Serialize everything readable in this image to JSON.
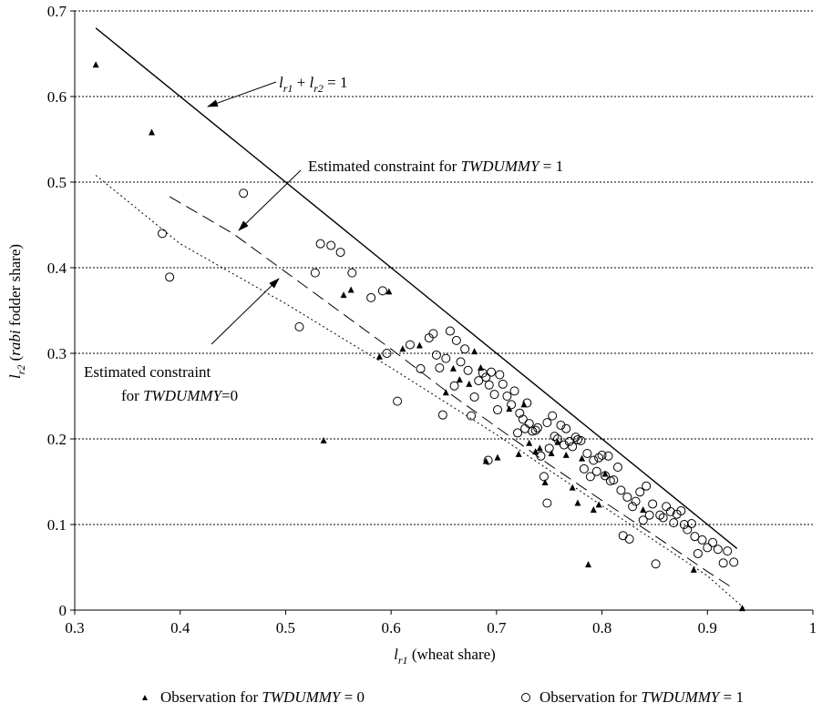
{
  "chart_data": {
    "type": "scatter",
    "xlim": [
      0.3,
      1.0
    ],
    "ylim": [
      0.0,
      0.7
    ],
    "x_ticks": [
      0.3,
      0.4,
      0.5,
      0.6,
      0.7,
      0.8,
      0.9,
      1.0
    ],
    "x_tick_labels": [
      "0.3",
      "0.4",
      "0.5",
      "0.6",
      "0.7",
      "0.8",
      "0.9",
      "1"
    ],
    "y_ticks": [
      0,
      0.1,
      0.2,
      0.3,
      0.4,
      0.5,
      0.6,
      0.7
    ],
    "y_tick_labels": [
      "0",
      "0.1",
      "0.2",
      "0.3",
      "0.4",
      "0.5",
      "0.6",
      "0.7"
    ],
    "grid": "horizontal dotted",
    "xlabel": {
      "l": "l",
      "sub": "r1",
      "rest": " (wheat share)"
    },
    "ylabel": {
      "l": "l",
      "sub": "r2",
      "open": " (",
      "ital": "rabi",
      "rest": " fodder share)"
    },
    "lines": [
      {
        "name": "l_r1 + l_r2 = 1",
        "style": "solid",
        "x": [
          0.32,
          0.928
        ],
        "y": [
          0.68,
          0.072
        ]
      },
      {
        "name": "Estimated constraint for TWDUMMY = 1",
        "style": "dashed",
        "x": [
          0.39,
          0.45,
          0.5,
          0.55,
          0.6,
          0.65,
          0.7,
          0.75,
          0.8,
          0.85,
          0.9,
          0.925
        ],
        "y": [
          0.483,
          0.44,
          0.395,
          0.35,
          0.305,
          0.258,
          0.214,
          0.17,
          0.128,
          0.087,
          0.045,
          0.025
        ]
      },
      {
        "name": "Estimated constraint for TWDUMMY = 0",
        "style": "dotted",
        "x": [
          0.32,
          0.4,
          0.5,
          0.6,
          0.7,
          0.8,
          0.9,
          0.935
        ],
        "y": [
          0.508,
          0.428,
          0.358,
          0.283,
          0.205,
          0.122,
          0.04,
          0.002
        ]
      }
    ],
    "series": [
      {
        "name": "Observation for TWDUMMY = 0",
        "marker": "triangle",
        "points": [
          [
            0.32,
            0.637
          ],
          [
            0.373,
            0.558
          ],
          [
            0.536,
            0.198
          ],
          [
            0.555,
            0.368
          ],
          [
            0.562,
            0.374
          ],
          [
            0.589,
            0.296
          ],
          [
            0.598,
            0.372
          ],
          [
            0.611,
            0.305
          ],
          [
            0.627,
            0.309
          ],
          [
            0.652,
            0.254
          ],
          [
            0.659,
            0.282
          ],
          [
            0.665,
            0.269
          ],
          [
            0.674,
            0.264
          ],
          [
            0.679,
            0.302
          ],
          [
            0.685,
            0.283
          ],
          [
            0.69,
            0.174
          ],
          [
            0.701,
            0.178
          ],
          [
            0.712,
            0.235
          ],
          [
            0.721,
            0.182
          ],
          [
            0.726,
            0.24
          ],
          [
            0.731,
            0.195
          ],
          [
            0.737,
            0.185
          ],
          [
            0.741,
            0.189
          ],
          [
            0.746,
            0.149
          ],
          [
            0.752,
            0.183
          ],
          [
            0.758,
            0.196
          ],
          [
            0.766,
            0.181
          ],
          [
            0.772,
            0.143
          ],
          [
            0.777,
            0.125
          ],
          [
            0.781,
            0.177
          ],
          [
            0.787,
            0.053
          ],
          [
            0.792,
            0.117
          ],
          [
            0.797,
            0.123
          ],
          [
            0.803,
            0.159
          ],
          [
            0.839,
            0.117
          ],
          [
            0.887,
            0.047
          ],
          [
            0.933,
            0.002
          ]
        ]
      },
      {
        "name": "Observation for TWDUMMY = 1",
        "marker": "circle",
        "points": [
          [
            0.383,
            0.44
          ],
          [
            0.39,
            0.389
          ],
          [
            0.46,
            0.487
          ],
          [
            0.513,
            0.331
          ],
          [
            0.528,
            0.394
          ],
          [
            0.533,
            0.428
          ],
          [
            0.543,
            0.426
          ],
          [
            0.552,
            0.418
          ],
          [
            0.563,
            0.394
          ],
          [
            0.581,
            0.365
          ],
          [
            0.592,
            0.373
          ],
          [
            0.596,
            0.3
          ],
          [
            0.606,
            0.244
          ],
          [
            0.618,
            0.31
          ],
          [
            0.628,
            0.282
          ],
          [
            0.636,
            0.318
          ],
          [
            0.64,
            0.323
          ],
          [
            0.643,
            0.298
          ],
          [
            0.646,
            0.283
          ],
          [
            0.649,
            0.228
          ],
          [
            0.652,
            0.294
          ],
          [
            0.656,
            0.326
          ],
          [
            0.66,
            0.262
          ],
          [
            0.662,
            0.315
          ],
          [
            0.666,
            0.29
          ],
          [
            0.67,
            0.305
          ],
          [
            0.673,
            0.28
          ],
          [
            0.676,
            0.227
          ],
          [
            0.679,
            0.249
          ],
          [
            0.683,
            0.268
          ],
          [
            0.687,
            0.277
          ],
          [
            0.69,
            0.272
          ],
          [
            0.693,
            0.263
          ],
          [
            0.695,
            0.278
          ],
          [
            0.698,
            0.252
          ],
          [
            0.701,
            0.234
          ],
          [
            0.703,
            0.275
          ],
          [
            0.706,
            0.264
          ],
          [
            0.71,
            0.25
          ],
          [
            0.714,
            0.24
          ],
          [
            0.717,
            0.256
          ],
          [
            0.72,
            0.207
          ],
          [
            0.722,
            0.23
          ],
          [
            0.725,
            0.223
          ],
          [
            0.727,
            0.212
          ],
          [
            0.729,
            0.242
          ],
          [
            0.731,
            0.218
          ],
          [
            0.734,
            0.209
          ],
          [
            0.737,
            0.21
          ],
          [
            0.739,
            0.213
          ],
          [
            0.742,
            0.18
          ],
          [
            0.745,
            0.156
          ],
          [
            0.748,
            0.219
          ],
          [
            0.75,
            0.189
          ],
          [
            0.753,
            0.227
          ],
          [
            0.755,
            0.203
          ],
          [
            0.758,
            0.2
          ],
          [
            0.761,
            0.216
          ],
          [
            0.764,
            0.193
          ],
          [
            0.766,
            0.212
          ],
          [
            0.769,
            0.197
          ],
          [
            0.772,
            0.191
          ],
          [
            0.775,
            0.202
          ],
          [
            0.777,
            0.199
          ],
          [
            0.78,
            0.198
          ],
          [
            0.783,
            0.165
          ],
          [
            0.786,
            0.183
          ],
          [
            0.789,
            0.156
          ],
          [
            0.792,
            0.175
          ],
          [
            0.795,
            0.162
          ],
          [
            0.797,
            0.178
          ],
          [
            0.8,
            0.181
          ],
          [
            0.803,
            0.157
          ],
          [
            0.806,
            0.18
          ],
          [
            0.808,
            0.151
          ],
          [
            0.811,
            0.152
          ],
          [
            0.815,
            0.167
          ],
          [
            0.818,
            0.14
          ],
          [
            0.82,
            0.087
          ],
          [
            0.824,
            0.132
          ],
          [
            0.826,
            0.083
          ],
          [
            0.829,
            0.121
          ],
          [
            0.832,
            0.127
          ],
          [
            0.836,
            0.138
          ],
          [
            0.839,
            0.105
          ],
          [
            0.842,
            0.145
          ],
          [
            0.845,
            0.111
          ],
          [
            0.848,
            0.124
          ],
          [
            0.851,
            0.054
          ],
          [
            0.855,
            0.111
          ],
          [
            0.858,
            0.108
          ],
          [
            0.861,
            0.121
          ],
          [
            0.865,
            0.115
          ],
          [
            0.868,
            0.102
          ],
          [
            0.871,
            0.112
          ],
          [
            0.875,
            0.116
          ],
          [
            0.878,
            0.1
          ],
          [
            0.881,
            0.094
          ],
          [
            0.885,
            0.101
          ],
          [
            0.888,
            0.086
          ],
          [
            0.891,
            0.066
          ],
          [
            0.895,
            0.082
          ],
          [
            0.9,
            0.073
          ],
          [
            0.905,
            0.079
          ],
          [
            0.91,
            0.071
          ],
          [
            0.915,
            0.055
          ],
          [
            0.919,
            0.069
          ],
          [
            0.925,
            0.056
          ],
          [
            0.748,
            0.125
          ],
          [
            0.692,
            0.175
          ]
        ]
      }
    ],
    "annotations": {
      "identity": {
        "l1": "l",
        "s1": "r1",
        "plus": " + ",
        "l2": "l",
        "s2": "r2",
        "eq": " = 1"
      },
      "tw1": {
        "text": "Estimated constraint for ",
        "ital": "TWDUMMY",
        "eq": " = 1"
      },
      "tw0_line1": "Estimated constraint",
      "tw0_line2": {
        "text": "for ",
        "ital": "TWDUMMY",
        "eq": "=0"
      }
    },
    "legend": {
      "position": "bottom-center",
      "items": [
        {
          "text": "Observation for ",
          "ital": "TWDUMMY",
          "eq": " = 0",
          "marker": "triangle"
        },
        {
          "text": "Observation for ",
          "ital": "TWDUMMY",
          "eq": " = 1",
          "marker": "circle"
        }
      ]
    }
  }
}
